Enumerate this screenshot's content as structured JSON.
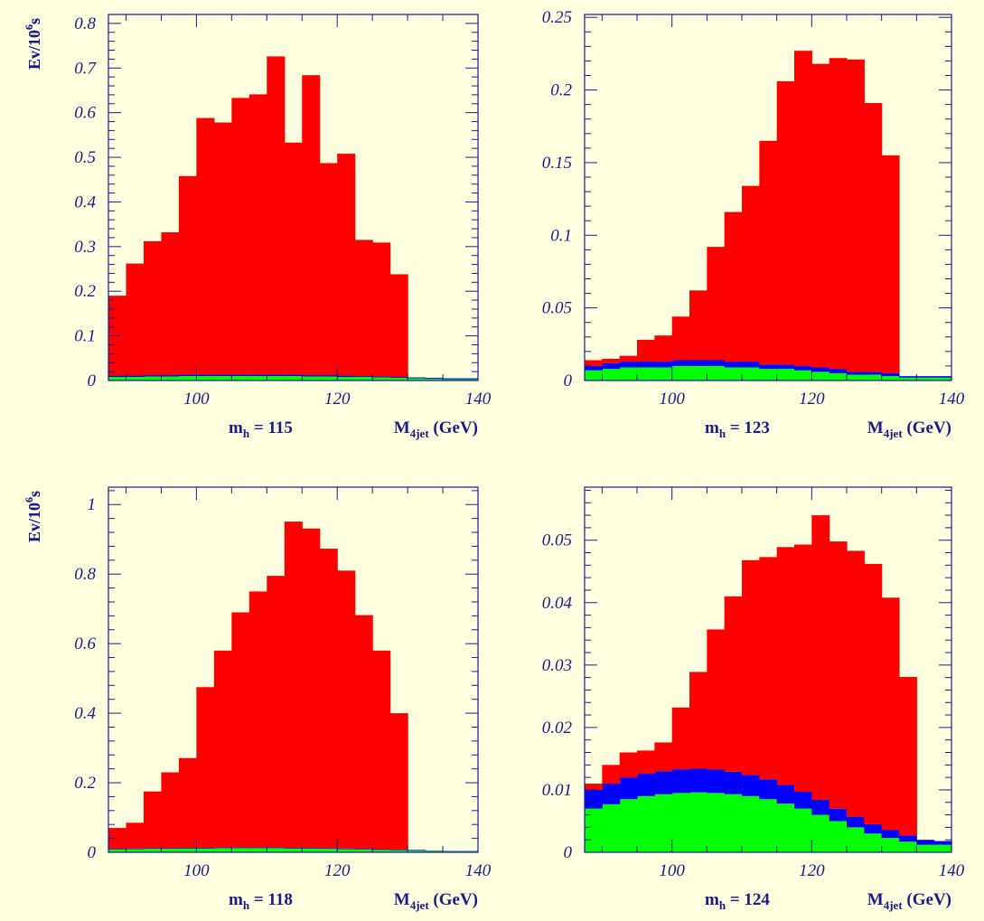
{
  "colors": {
    "background": "#FFFFE0",
    "axis": "#1A1A8C",
    "red": "#FF0000",
    "blue": "#0000FF",
    "green": "#00FF00"
  },
  "chart_data": [
    {
      "type": "bar",
      "stacked": true,
      "ylabel_pre": "Ev/10",
      "ylabel_sup": "6",
      "ylabel_post": "s",
      "mass_label_pre": "m",
      "mass_label_sub": "h",
      "mass_label_post": " = 115",
      "xlabel_pre": "M",
      "xlabel_sub": "4jet",
      "xlabel_post": " (GeV)",
      "xlim": [
        87.5,
        140
      ],
      "ylim": [
        0,
        0.82
      ],
      "x_ticks": [
        100,
        120,
        140
      ],
      "y_ticks": [
        0,
        0.1,
        0.2,
        0.3,
        0.4,
        0.5,
        0.6,
        0.7,
        0.8
      ],
      "y_tick_labels": [
        "0",
        "0.1",
        "0.2",
        "0.3",
        "0.4",
        "0.5",
        "0.6",
        "0.7",
        "0.8"
      ],
      "bin_edges": [
        87.5,
        90,
        92.5,
        95,
        97.5,
        100,
        102.5,
        105,
        107.5,
        110,
        112.5,
        115,
        117.5,
        120,
        122.5,
        125,
        127.5,
        130,
        132.5,
        135,
        137.5,
        140
      ],
      "series": [
        {
          "color": "green",
          "values": [
            0.008,
            0.008,
            0.009,
            0.009,
            0.01,
            0.01,
            0.01,
            0.01,
            0.01,
            0.01,
            0.01,
            0.009,
            0.009,
            0.008,
            0.008,
            0.007,
            0.006,
            0.005,
            0.004,
            0.003,
            0.003
          ]
        },
        {
          "color": "blue",
          "values": [
            0.003,
            0.003,
            0.003,
            0.003,
            0.003,
            0.003,
            0.003,
            0.003,
            0.003,
            0.003,
            0.003,
            0.003,
            0.003,
            0.003,
            0.002,
            0.002,
            0.002,
            0.002,
            0.002,
            0.002,
            0.002
          ]
        },
        {
          "color": "red",
          "values": [
            0.179,
            0.251,
            0.3,
            0.32,
            0.445,
            0.575,
            0.565,
            0.62,
            0.628,
            0.713,
            0.52,
            0.672,
            0.475,
            0.497,
            0.305,
            0.3,
            0.23,
            0.0,
            0.0,
            0.0,
            0.0
          ]
        }
      ],
      "total_values": [
        0.19,
        0.262,
        0.312,
        0.332,
        0.458,
        0.588,
        0.578,
        0.633,
        0.641,
        0.726,
        0.533,
        0.684,
        0.487,
        0.508,
        0.315,
        0.309,
        0.238,
        0.0,
        0.0,
        0.0,
        0.0
      ]
    },
    {
      "type": "bar",
      "stacked": true,
      "ylabel_pre": "Ev/10",
      "ylabel_sup": "6",
      "ylabel_post": "s",
      "mass_label_pre": "m",
      "mass_label_sub": "h",
      "mass_label_post": " = 123",
      "xlabel_pre": "M",
      "xlabel_sub": "4jet",
      "xlabel_post": " (GeV)",
      "xlim": [
        87.5,
        140
      ],
      "ylim": [
        0,
        0.252
      ],
      "x_ticks": [
        100,
        120,
        140
      ],
      "y_ticks": [
        0,
        0.05,
        0.1,
        0.15,
        0.2,
        0.25
      ],
      "y_tick_labels": [
        "0",
        "0.05",
        "0.1",
        "0.15",
        "0.2",
        "0.25"
      ],
      "bin_edges": [
        87.5,
        90,
        92.5,
        95,
        97.5,
        100,
        102.5,
        105,
        107.5,
        110,
        112.5,
        115,
        117.5,
        120,
        122.5,
        125,
        127.5,
        130,
        132.5,
        135,
        137.5,
        140
      ],
      "series": [
        {
          "color": "green",
          "values": [
            0.007,
            0.008,
            0.009,
            0.009,
            0.009,
            0.01,
            0.01,
            0.01,
            0.009,
            0.009,
            0.008,
            0.008,
            0.007,
            0.006,
            0.005,
            0.004,
            0.004,
            0.003,
            0.002,
            0.002,
            0.002
          ]
        },
        {
          "color": "blue",
          "values": [
            0.003,
            0.004,
            0.004,
            0.004,
            0.004,
            0.004,
            0.004,
            0.004,
            0.004,
            0.004,
            0.003,
            0.003,
            0.003,
            0.003,
            0.003,
            0.002,
            0.002,
            0.002,
            0.001,
            0.001,
            0.001
          ]
        },
        {
          "color": "red",
          "values": [
            0.004,
            0.003,
            0.004,
            0.015,
            0.018,
            0.03,
            0.048,
            0.078,
            0.103,
            0.121,
            0.154,
            0.195,
            0.217,
            0.209,
            0.214,
            0.215,
            0.185,
            0.15,
            0.0,
            0.0,
            0.0
          ]
        }
      ],
      "total_values": [
        0.014,
        0.015,
        0.017,
        0.028,
        0.031,
        0.044,
        0.062,
        0.092,
        0.116,
        0.134,
        0.165,
        0.206,
        0.227,
        0.218,
        0.222,
        0.221,
        0.191,
        0.155,
        0.0,
        0.0,
        0.0
      ]
    },
    {
      "type": "bar",
      "stacked": true,
      "ylabel_pre": "Ev/10",
      "ylabel_sup": "6",
      "ylabel_post": "s",
      "mass_label_pre": "m",
      "mass_label_sub": "h",
      "mass_label_post": " = 118",
      "xlabel_pre": "M",
      "xlabel_sub": "4jet",
      "xlabel_post": " (GeV)",
      "xlim": [
        87.5,
        140
      ],
      "ylim": [
        0,
        1.05
      ],
      "x_ticks": [
        100,
        120,
        140
      ],
      "y_ticks": [
        0,
        0.2,
        0.4,
        0.6,
        0.8,
        1
      ],
      "y_tick_labels": [
        "0",
        "0.2",
        "0.4",
        "0.6",
        "0.8",
        "1"
      ],
      "bin_edges": [
        87.5,
        90,
        92.5,
        95,
        97.5,
        100,
        102.5,
        105,
        107.5,
        110,
        112.5,
        115,
        117.5,
        120,
        122.5,
        125,
        127.5,
        130,
        132.5,
        135,
        137.5,
        140
      ],
      "series": [
        {
          "color": "green",
          "values": [
            0.008,
            0.009,
            0.01,
            0.01,
            0.011,
            0.011,
            0.012,
            0.012,
            0.012,
            0.012,
            0.011,
            0.011,
            0.01,
            0.009,
            0.008,
            0.007,
            0.006,
            0.005,
            0.004,
            0.003,
            0.003
          ]
        },
        {
          "color": "blue",
          "values": [
            0.002,
            0.002,
            0.002,
            0.002,
            0.002,
            0.002,
            0.002,
            0.002,
            0.002,
            0.002,
            0.002,
            0.002,
            0.002,
            0.002,
            0.002,
            0.002,
            0.002,
            0.002,
            0.001,
            0.001,
            0.001
          ]
        },
        {
          "color": "red",
          "values": [
            0.06,
            0.074,
            0.163,
            0.218,
            0.258,
            0.462,
            0.566,
            0.676,
            0.736,
            0.781,
            0.938,
            0.918,
            0.861,
            0.799,
            0.672,
            0.571,
            0.392,
            0.0,
            0.0,
            0.0,
            0.0
          ]
        }
      ],
      "total_values": [
        0.07,
        0.085,
        0.175,
        0.23,
        0.271,
        0.475,
        0.58,
        0.69,
        0.75,
        0.795,
        0.951,
        0.931,
        0.873,
        0.81,
        0.682,
        0.58,
        0.4,
        0.0,
        0.0,
        0.0,
        0.0
      ]
    },
    {
      "type": "bar",
      "stacked": true,
      "ylabel_pre": "Ev/10",
      "ylabel_sup": "6",
      "ylabel_post": "s",
      "mass_label_pre": "m",
      "mass_label_sub": "h",
      "mass_label_post": " = 124",
      "xlabel_pre": "M",
      "xlabel_sub": "4jet",
      "xlabel_post": " (GeV)",
      "xlim": [
        87.5,
        140
      ],
      "ylim": [
        0,
        0.0585
      ],
      "x_ticks": [
        100,
        120,
        140
      ],
      "y_ticks": [
        0,
        0.01,
        0.02,
        0.03,
        0.04,
        0.05
      ],
      "y_tick_labels": [
        "0",
        "0.01",
        "0.02",
        "0.03",
        "0.04",
        "0.05"
      ],
      "bin_edges": [
        87.5,
        90,
        92.5,
        95,
        97.5,
        100,
        102.5,
        105,
        107.5,
        110,
        112.5,
        115,
        117.5,
        120,
        122.5,
        125,
        127.5,
        130,
        132.5,
        135,
        137.5,
        140
      ],
      "series": [
        {
          "color": "green",
          "values": [
            0.007,
            0.0077,
            0.0085,
            0.009,
            0.0093,
            0.0095,
            0.0096,
            0.0095,
            0.0093,
            0.009,
            0.0085,
            0.0078,
            0.007,
            0.006,
            0.005,
            0.004,
            0.003,
            0.0023,
            0.0017,
            0.0012,
            0.0012
          ]
        },
        {
          "color": "blue",
          "values": [
            0.003,
            0.0033,
            0.0035,
            0.0036,
            0.0037,
            0.0038,
            0.0038,
            0.0038,
            0.0036,
            0.0034,
            0.0032,
            0.003,
            0.0027,
            0.0024,
            0.002,
            0.0017,
            0.0015,
            0.0013,
            0.001,
            0.0008,
            0.0006
          ]
        },
        {
          "color": "red",
          "values": [
            0.001,
            0.003,
            0.004,
            0.0037,
            0.0046,
            0.0099,
            0.0155,
            0.0224,
            0.0281,
            0.0344,
            0.0356,
            0.0381,
            0.0396,
            0.0456,
            0.0428,
            0.0426,
            0.0417,
            0.0372,
            0.0254,
            0.0,
            0.0
          ]
        }
      ],
      "total_values": [
        0.011,
        0.014,
        0.016,
        0.0163,
        0.0176,
        0.0232,
        0.0289,
        0.0357,
        0.041,
        0.0468,
        0.0473,
        0.0489,
        0.0493,
        0.054,
        0.0498,
        0.0483,
        0.0462,
        0.0408,
        0.0281,
        0.0,
        0.0
      ]
    }
  ]
}
